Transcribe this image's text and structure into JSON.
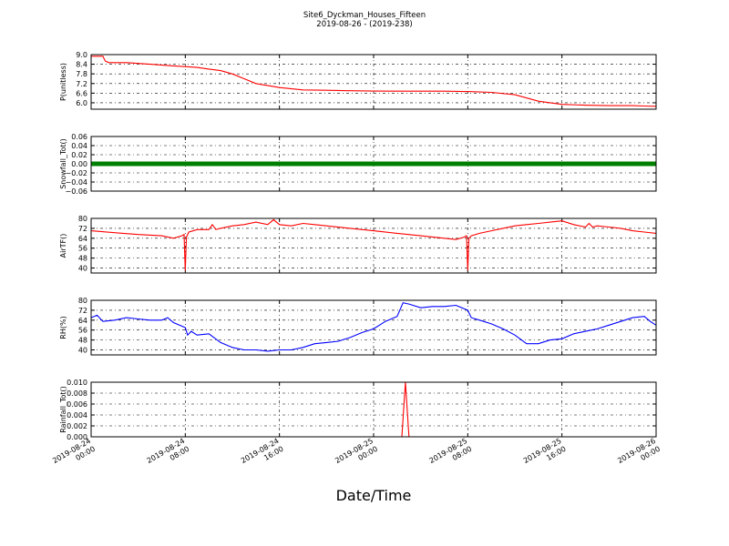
{
  "title_line1": "Site6_Dyckman_Houses_Fifteen",
  "title_line2": "2019-08-26 - (2019-238)",
  "xlabel": "Date/Time",
  "x_tick_labels": [
    [
      "2019-08-24",
      "00:00"
    ],
    [
      "2019-08-24",
      "08:00"
    ],
    [
      "2019-08-24",
      "16:00"
    ],
    [
      "2019-08-25",
      "00:00"
    ],
    [
      "2019-08-25",
      "08:00"
    ],
    [
      "2019-08-25",
      "16:00"
    ],
    [
      "2019-08-26",
      "00:00"
    ]
  ],
  "chart_data": [
    {
      "type": "line",
      "ylabel": "P(unitless)",
      "ylim": [
        5.6,
        9.0
      ],
      "y_ticks": [
        "6.0",
        "6.6",
        "7.2",
        "7.8",
        "8.4",
        "9.0"
      ],
      "y_tick_values": [
        6.0,
        6.6,
        7.2,
        7.8,
        8.4,
        9.0
      ],
      "xlim_hours": [
        0,
        48
      ],
      "grid": true,
      "series": [
        {
          "color": "#ff0000",
          "x_hours": [
            0,
            1,
            1.2,
            1.5,
            3,
            5,
            7,
            8,
            9,
            10,
            11,
            12,
            13,
            14,
            16,
            18,
            20,
            22,
            24,
            26,
            28,
            30,
            32,
            34,
            36,
            38,
            40,
            42,
            44,
            46,
            47,
            48
          ],
          "values": [
            8.9,
            8.9,
            8.6,
            8.5,
            8.5,
            8.4,
            8.3,
            8.25,
            8.2,
            8.1,
            8.0,
            7.8,
            7.5,
            7.2,
            6.95,
            6.8,
            6.78,
            6.75,
            6.73,
            6.72,
            6.72,
            6.72,
            6.7,
            6.65,
            6.5,
            6.1,
            5.9,
            5.85,
            5.82,
            5.82,
            5.8,
            5.78
          ]
        }
      ]
    },
    {
      "type": "line",
      "ylabel": "Snowfall_Tot()",
      "ylim": [
        -0.06,
        0.06
      ],
      "y_ticks": [
        "0.06",
        "0.04",
        "0.02",
        "0.00",
        "−0.02",
        "−0.04",
        "−0.06"
      ],
      "y_tick_values": [
        0.06,
        0.04,
        0.02,
        0.0,
        -0.02,
        -0.04,
        -0.06
      ],
      "xlim_hours": [
        0,
        48
      ],
      "grid": true,
      "series": [
        {
          "color": "#008000",
          "style": "markers",
          "x_hours": [
            0,
            48
          ],
          "values": [
            0.0,
            0.0
          ]
        }
      ]
    },
    {
      "type": "line",
      "ylabel": "AirTF()",
      "ylim": [
        36,
        80
      ],
      "y_ticks": [
        "80",
        "72",
        "64",
        "56",
        "48",
        "40"
      ],
      "y_tick_values": [
        80,
        72,
        64,
        56,
        48,
        40
      ],
      "xlim_hours": [
        0,
        48
      ],
      "grid": true,
      "series": [
        {
          "color": "#ff0000",
          "x_hours": [
            0,
            2,
            4,
            6,
            7,
            7.7,
            7.9,
            8.0,
            8.1,
            8.3,
            9,
            10,
            10.3,
            10.6,
            11,
            12,
            13,
            14,
            15,
            15.5,
            16,
            17,
            18,
            19,
            20,
            22,
            24,
            26,
            28,
            30,
            31,
            31.7,
            31.9,
            32.0,
            32.1,
            32.3,
            33,
            34,
            35,
            36,
            37,
            38,
            39,
            40,
            41,
            42,
            42.3,
            42.6,
            43,
            44,
            45,
            46,
            47,
            48
          ],
          "values": [
            70,
            68.5,
            67,
            66,
            64,
            66,
            67,
            38,
            65,
            69,
            71,
            71,
            75,
            71,
            72,
            74,
            75,
            77,
            75,
            79,
            75,
            74,
            76,
            75,
            74,
            72,
            70,
            68,
            66,
            64,
            63,
            65,
            66,
            38,
            64,
            66,
            68,
            70,
            72,
            74,
            75,
            76,
            77,
            78,
            75,
            73,
            76,
            73,
            74,
            73,
            72,
            70,
            69,
            68
          ]
        }
      ]
    },
    {
      "type": "line",
      "ylabel": "RH(%)",
      "ylim": [
        36,
        80
      ],
      "y_ticks": [
        "80",
        "72",
        "64",
        "56",
        "48",
        "40"
      ],
      "y_tick_values": [
        80,
        72,
        64,
        56,
        48,
        40
      ],
      "xlim_hours": [
        0,
        48
      ],
      "grid": true,
      "series": [
        {
          "color": "#0000ff",
          "x_hours": [
            0,
            0.5,
            1,
            2,
            3,
            4,
            5,
            6,
            6.5,
            7,
            7.5,
            8,
            8.2,
            8.5,
            9,
            10,
            11,
            12,
            13,
            14,
            15,
            16,
            17,
            18,
            19,
            20,
            21,
            22,
            23,
            24,
            25,
            26,
            26.5,
            27,
            28,
            29,
            30,
            31,
            32,
            32.3,
            33,
            34,
            35,
            36,
            37,
            38,
            39,
            40,
            41,
            42,
            43,
            44,
            45,
            46,
            47,
            47.5,
            48
          ],
          "values": [
            66,
            68,
            63,
            64,
            66,
            65,
            64,
            64,
            66,
            62,
            60,
            58,
            52,
            55,
            52,
            53,
            46,
            42,
            40,
            40,
            39,
            40,
            40,
            42,
            45,
            46,
            47,
            50,
            54,
            57,
            63,
            67,
            78,
            77,
            74,
            75,
            75,
            76,
            72,
            66,
            64,
            61,
            57,
            52,
            45,
            45,
            48,
            49,
            53,
            55,
            57,
            60,
            63,
            66,
            67,
            63,
            60
          ]
        }
      ]
    },
    {
      "type": "line",
      "ylabel": "Rainfall_Tot()",
      "ylim": [
        0.0,
        0.01
      ],
      "y_ticks": [
        "0.010",
        "0.008",
        "0.006",
        "0.004",
        "0.002",
        "0.000"
      ],
      "y_tick_values": [
        0.01,
        0.008,
        0.006,
        0.004,
        0.002,
        0.0
      ],
      "xlim_hours": [
        0,
        48
      ],
      "grid": true,
      "series": [
        {
          "color": "#ff0000",
          "x_hours": [
            0,
            26.4,
            26.7,
            27.0,
            48
          ],
          "values": [
            0.0,
            0.0,
            0.01,
            0.0,
            0.0
          ]
        }
      ]
    }
  ]
}
